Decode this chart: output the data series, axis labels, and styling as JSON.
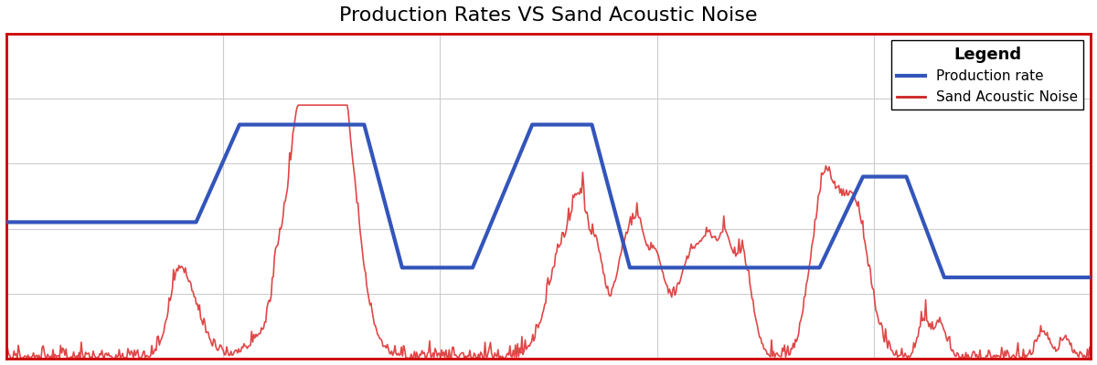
{
  "title": "Production Rates VS Sand Acoustic Noise",
  "title_fontsize": 16,
  "legend_title": "Legend",
  "legend_labels": [
    "Production rate",
    "Sand Acoustic Noise"
  ],
  "legend_colors": [
    "#3355bb",
    "#cc2222"
  ],
  "background_color": "#ffffff",
  "grid_color": "#cccccc",
  "border_color": "#cc0000",
  "prod_line_color": "#3355bb",
  "sand_line_color": "#dd3333",
  "prod_linewidth": 3.0,
  "sand_linewidth": 1.2,
  "xlim": [
    0,
    1000
  ],
  "ylim": [
    0,
    1
  ],
  "prod_x": [
    0,
    175,
    215,
    330,
    365,
    430,
    485,
    540,
    575,
    750,
    790,
    830,
    865,
    1000
  ],
  "prod_y": [
    0.42,
    0.42,
    0.72,
    0.72,
    0.28,
    0.28,
    0.72,
    0.72,
    0.28,
    0.28,
    0.56,
    0.56,
    0.25,
    0.25
  ]
}
